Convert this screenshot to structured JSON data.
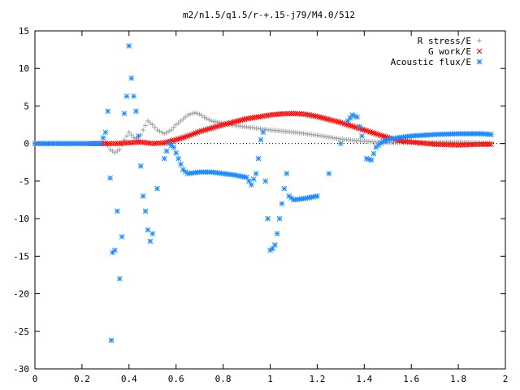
{
  "chart_data": {
    "type": "scatter",
    "title": "m2/n1.5/q1.5/r-+.15-j79/M4.0/512",
    "xlabel": "",
    "ylabel": "",
    "xlim": [
      0,
      2
    ],
    "ylim": [
      -30,
      15
    ],
    "x_ticks": [
      "0",
      "0.2",
      "0.4",
      "0.6",
      "0.8",
      "1",
      "1.2",
      "1.4",
      "1.6",
      "1.8",
      "2"
    ],
    "x_tick_values": [
      0,
      0.2,
      0.4,
      0.6,
      0.8,
      1.0,
      1.2,
      1.4,
      1.6,
      1.8,
      2.0
    ],
    "y_ticks": [
      "15",
      "10",
      "5",
      "0",
      "-5",
      "-10",
      "-15",
      "-20",
      "-25",
      "-30"
    ],
    "y_tick_values": [
      15,
      10,
      5,
      0,
      -5,
      -10,
      -15,
      -20,
      -25,
      -30
    ],
    "grid": false,
    "legend_position": "top-right",
    "series": [
      {
        "name": "R stress/E",
        "color": "#a0a0a0",
        "marker": "plus",
        "x": [
          0,
          0.1,
          0.2,
          0.28,
          0.3,
          0.32,
          0.34,
          0.36,
          0.38,
          0.4,
          0.42,
          0.44,
          0.46,
          0.48,
          0.5,
          0.52,
          0.55,
          0.58,
          0.6,
          0.62,
          0.65,
          0.68,
          0.7,
          0.72,
          0.75,
          0.8,
          0.85,
          0.9,
          0.95,
          1.0,
          1.1,
          1.2,
          1.3,
          1.4,
          1.5,
          1.6,
          1.7,
          1.8,
          1.9,
          1.94
        ],
        "y": [
          0,
          0,
          0,
          0,
          0.2,
          -0.8,
          -1.2,
          -0.8,
          0.5,
          1.5,
          0.8,
          0.5,
          1.8,
          3.0,
          2.5,
          1.8,
          1.3,
          1.8,
          2.5,
          3.0,
          3.8,
          4.1,
          3.9,
          3.5,
          3.0,
          2.7,
          2.4,
          2.2,
          2.0,
          1.8,
          1.5,
          1.1,
          0.6,
          0.3,
          0.1,
          0.1,
          0.2,
          0.2,
          0.1,
          0.1
        ]
      },
      {
        "name": "G work/E",
        "color": "#ff0000",
        "marker": "cross",
        "x": [
          0,
          0.1,
          0.2,
          0.3,
          0.35,
          0.4,
          0.45,
          0.5,
          0.55,
          0.6,
          0.65,
          0.7,
          0.8,
          0.9,
          1.0,
          1.05,
          1.1,
          1.15,
          1.2,
          1.25,
          1.3,
          1.35,
          1.4,
          1.45,
          1.5,
          1.55,
          1.6,
          1.7,
          1.8,
          1.9,
          1.94
        ],
        "y": [
          0,
          0,
          0,
          0,
          0,
          0.1,
          0.2,
          0,
          0.1,
          0.5,
          1.0,
          1.6,
          2.5,
          3.3,
          3.8,
          3.95,
          4.0,
          3.9,
          3.6,
          3.2,
          2.8,
          2.3,
          1.8,
          1.3,
          0.8,
          0.4,
          0.2,
          -0.1,
          -0.2,
          -0.1,
          -0.1
        ]
      },
      {
        "name": "Acoustic flux/E",
        "color": "#1e8cff",
        "marker": "star",
        "x": [
          0,
          0.1,
          0.2,
          0.28,
          0.3,
          0.31,
          0.32,
          0.325,
          0.33,
          0.34,
          0.35,
          0.36,
          0.37,
          0.38,
          0.39,
          0.4,
          0.41,
          0.42,
          0.43,
          0.44,
          0.45,
          0.46,
          0.47,
          0.48,
          0.49,
          0.5,
          0.52,
          0.55,
          0.57,
          0.59,
          0.61,
          0.63,
          0.65,
          0.7,
          0.75,
          0.8,
          0.85,
          0.9,
          0.92,
          0.94,
          0.95,
          0.96,
          0.97,
          0.98,
          0.99,
          1.0,
          1.01,
          1.02,
          1.03,
          1.04,
          1.05,
          1.06,
          1.07,
          1.08,
          1.1,
          1.15,
          1.2,
          1.25,
          1.3,
          1.33,
          1.35,
          1.37,
          1.39,
          1.41,
          1.43,
          1.45,
          1.48,
          1.5,
          1.55,
          1.6,
          1.7,
          1.8,
          1.9,
          1.94
        ],
        "y": [
          0,
          0,
          0,
          0,
          1.5,
          4.3,
          -4.6,
          -26.2,
          -14.5,
          -14.2,
          -9.0,
          -18.0,
          -12.4,
          4.0,
          6.3,
          13.0,
          8.7,
          6.3,
          4.3,
          1.0,
          -3.0,
          -7.0,
          -9.0,
          -11.5,
          -13.0,
          -12.0,
          -6.0,
          -2.0,
          0.0,
          -0.5,
          -2.0,
          -3.5,
          -4.0,
          -3.8,
          -3.8,
          -4.0,
          -4.2,
          -4.5,
          -5.5,
          -4.0,
          -2.0,
          0.5,
          1.5,
          -5.0,
          -10.0,
          -14.2,
          -14.0,
          -13.5,
          -12.0,
          -10.0,
          -8.0,
          -6.0,
          -4.0,
          -7.0,
          -7.5,
          -7.3,
          -7.0,
          -4.0,
          0.0,
          3.0,
          3.8,
          3.5,
          1.0,
          -2.0,
          -2.2,
          -0.5,
          0.3,
          0.5,
          0.8,
          1.0,
          1.2,
          1.3,
          1.3,
          1.2
        ]
      }
    ]
  }
}
